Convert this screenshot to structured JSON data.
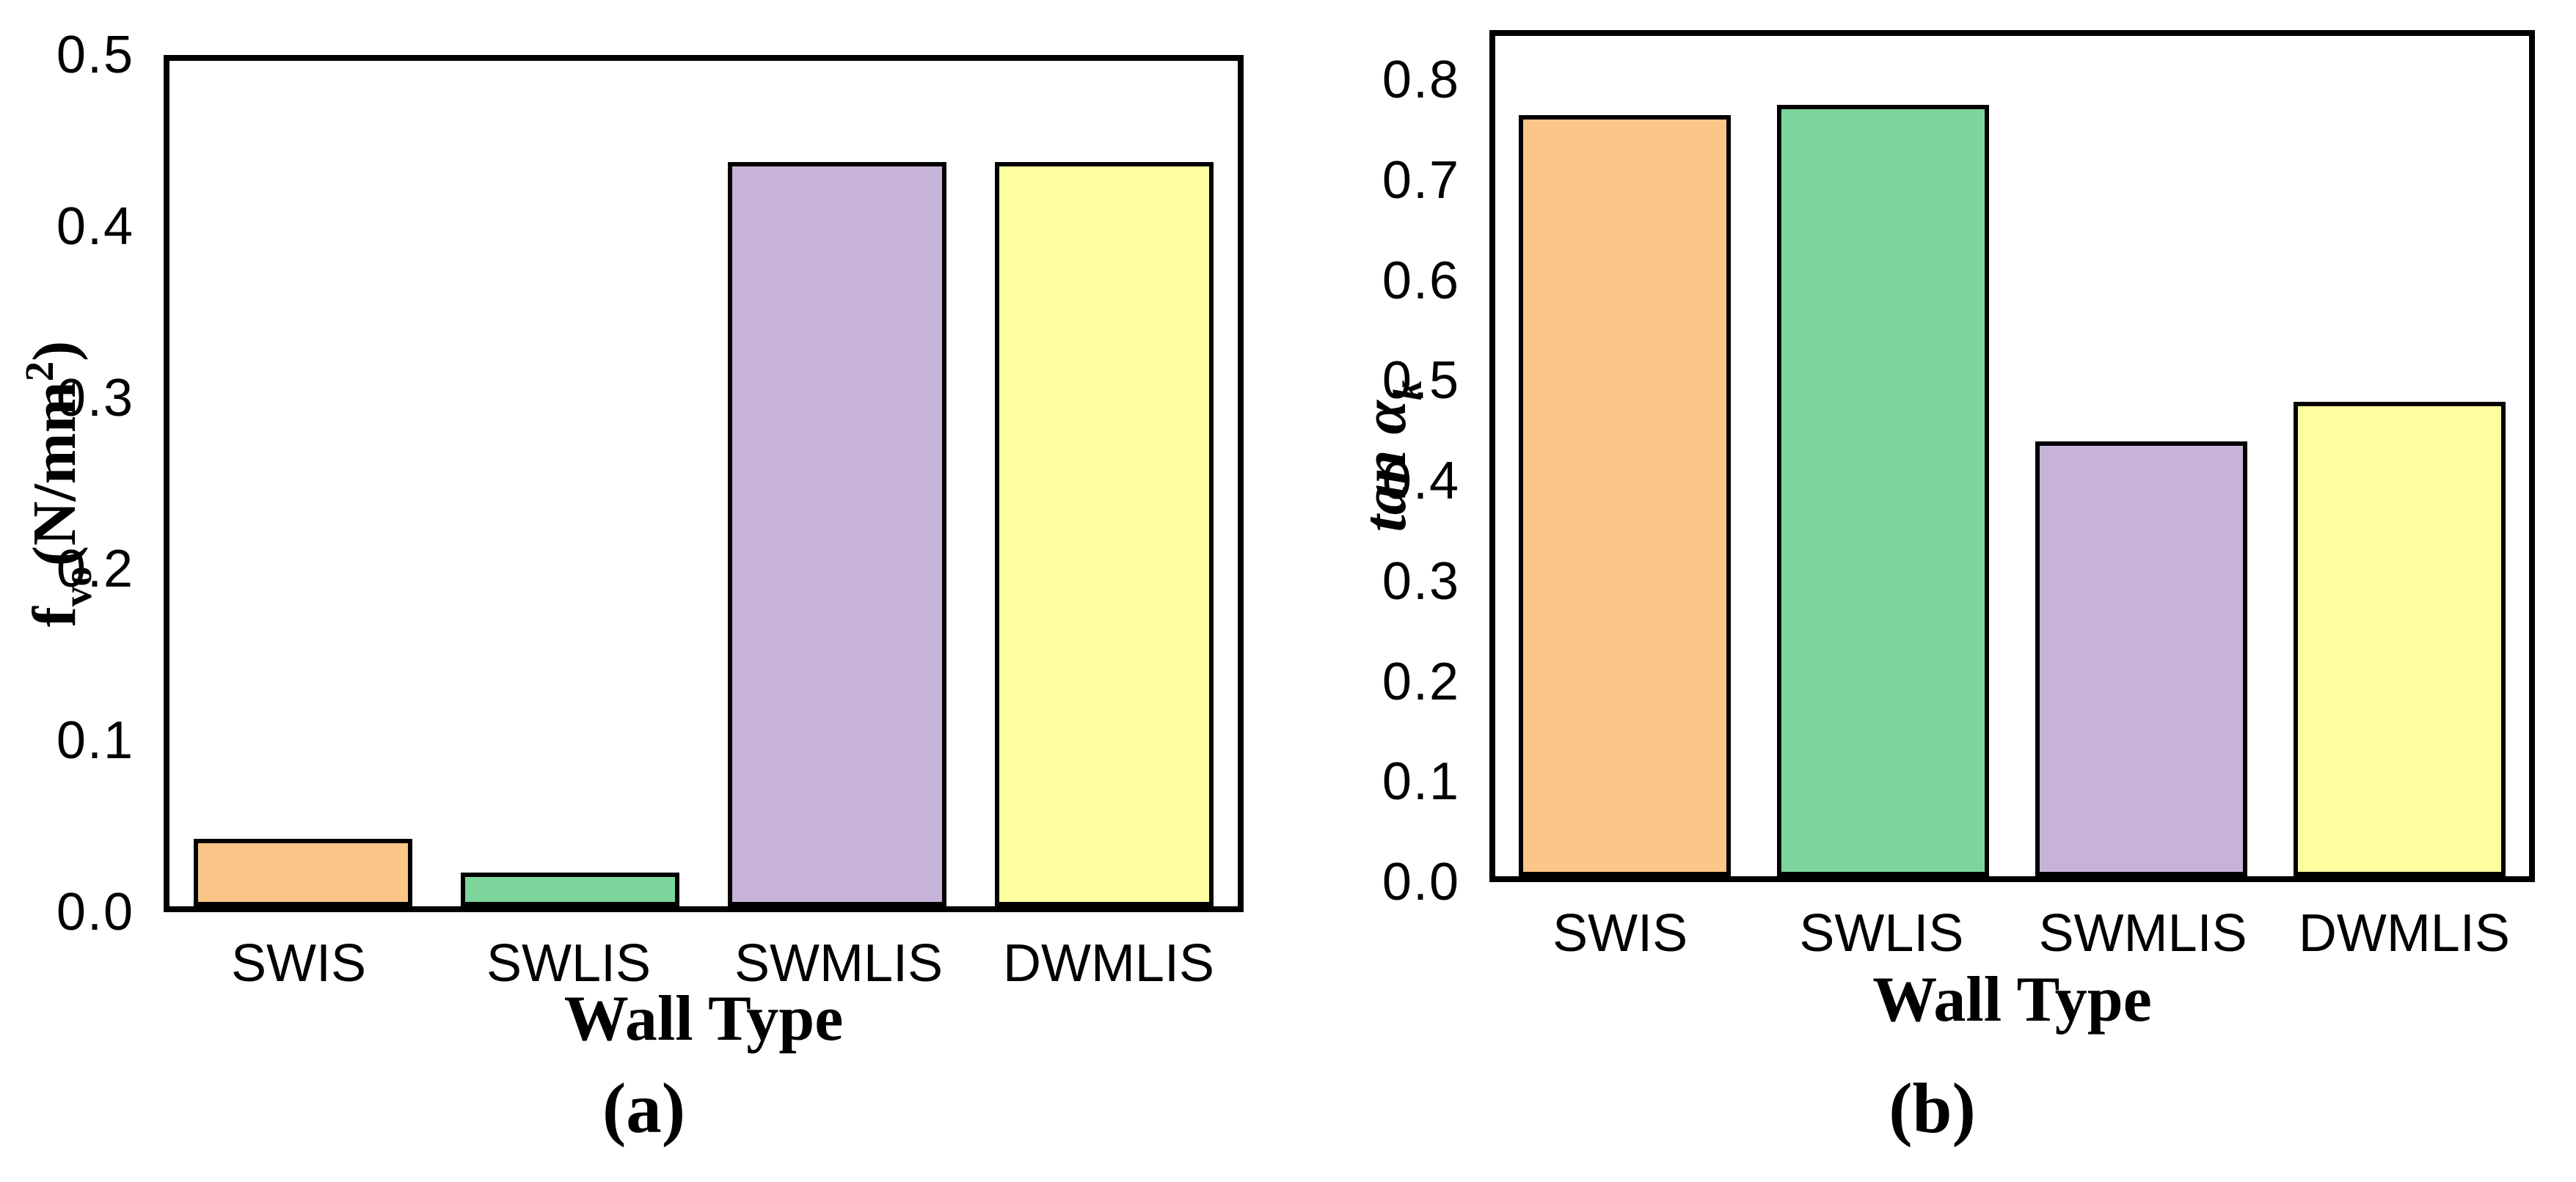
{
  "page_background": "#FFFFFF",
  "axis_color": "#000000",
  "chart_data": [
    {
      "id": "a",
      "type": "bar",
      "caption": "(a)",
      "xlabel": "Wall Type",
      "ylabel": "fvo (N/mm2)",
      "ylabel_rich": {
        "sym": "f",
        "sub": "vo",
        "unit_open": "(N/mm",
        "unit_sup": "2",
        "unit_close": ")"
      },
      "categories": [
        "SWIS",
        "SWLIS",
        "SWMLIS",
        "DWMLIS"
      ],
      "values": [
        0.04,
        0.02,
        0.44,
        0.44
      ],
      "bar_colors": [
        "#FCC689",
        "#7DD69C",
        "#C7B3D7",
        "#FEFE9E"
      ],
      "bar_edge_color": "#000000",
      "ytick_labels": [
        "0.0",
        "0.1",
        "0.2",
        "0.3",
        "0.4",
        "0.5"
      ],
      "ytick_values": [
        0,
        0.1,
        0.2,
        0.3,
        0.4,
        0.5
      ],
      "ylim": [
        0,
        0.5
      ],
      "grid": false,
      "legend": null
    },
    {
      "id": "b",
      "type": "bar",
      "caption": "(b)",
      "xlabel": "Wall Type",
      "ylabel": "tan αk",
      "ylabel_rich": {
        "main": "tan α",
        "sub": "k"
      },
      "categories": [
        "SWIS",
        "SWLIS",
        "SWMLIS",
        "DWMLIS"
      ],
      "values": [
        0.77,
        0.78,
        0.44,
        0.48
      ],
      "bar_colors": [
        "#FCC689",
        "#7DD69C",
        "#C7B3D7",
        "#FEFE9E"
      ],
      "bar_edge_color": "#000000",
      "ytick_labels": [
        "0.0",
        "0.1",
        "0.2",
        "0.3",
        "0.4",
        "0.5",
        "0.6",
        "0.7",
        "0.8"
      ],
      "ytick_values": [
        0,
        0.1,
        0.2,
        0.3,
        0.4,
        0.5,
        0.6,
        0.7,
        0.8
      ],
      "ylim": [
        0,
        0.85
      ],
      "grid": false,
      "legend": null
    }
  ]
}
